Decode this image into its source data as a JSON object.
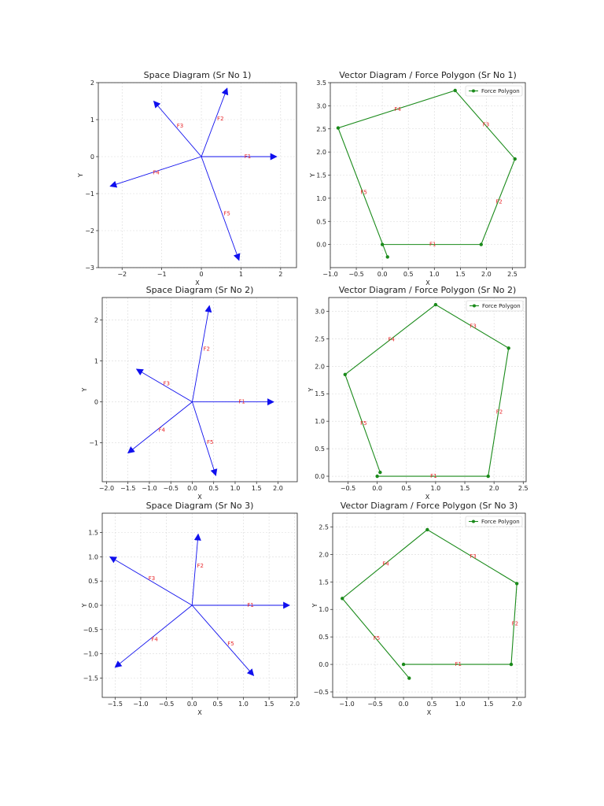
{
  "colors": {
    "space": "#1010ee",
    "polygon": "#1a8a1a",
    "label": "#e8262a",
    "grid": "#d9d9d9",
    "axis": "#222222"
  },
  "chart_data": [
    {
      "type": "quiver",
      "kind": "space",
      "title": "Space Diagram (Sr No 1)",
      "xlabel": "X",
      "ylabel": "Y",
      "xlim": [
        -2.6,
        2.4
      ],
      "ylim": [
        -3.0,
        2.0
      ],
      "xticks": [
        -2,
        -1,
        0,
        1,
        2
      ],
      "yticks": [
        -3,
        -2,
        -1,
        0,
        1,
        2
      ],
      "grid": true,
      "forces": [
        {
          "name": "F1",
          "dx": 1.9,
          "dy": 0.0
        },
        {
          "name": "F2",
          "dx": 0.65,
          "dy": 1.85
        },
        {
          "name": "F3",
          "dx": -1.2,
          "dy": 1.5
        },
        {
          "name": "F4",
          "dx": -2.3,
          "dy": -0.8
        },
        {
          "name": "F5",
          "dx": 0.95,
          "dy": -2.8
        }
      ]
    },
    {
      "type": "line",
      "kind": "polygon",
      "title": "Vector Diagram / Force Polygon (Sr No 1)",
      "xlabel": "X",
      "ylabel": "Y",
      "xlim": [
        -1.0,
        2.75
      ],
      "ylim": [
        -0.5,
        3.5
      ],
      "xticks": [
        -1.0,
        -0.5,
        0.0,
        0.5,
        1.0,
        1.5,
        2.0,
        2.5
      ],
      "yticks": [
        0.0,
        0.5,
        1.0,
        1.5,
        2.0,
        2.5,
        3.0,
        3.5
      ],
      "grid": true,
      "legend": "Force Polygon",
      "legend_position": "top-right",
      "points": [
        [
          0.0,
          0.0
        ],
        [
          1.9,
          0.0
        ],
        [
          2.55,
          1.85
        ],
        [
          1.4,
          3.33
        ],
        [
          -0.85,
          2.52
        ],
        [
          0.1,
          -0.27
        ]
      ],
      "segment_labels": [
        "F1",
        "F2",
        "F3",
        "F4",
        "F5"
      ]
    },
    {
      "type": "quiver",
      "kind": "space",
      "title": "Space Diagram (Sr No 2)",
      "xlabel": "X",
      "ylabel": "Y",
      "xlim": [
        -2.1,
        2.45
      ],
      "ylim": [
        -1.95,
        2.55
      ],
      "xticks": [
        -2.0,
        -1.5,
        -1.0,
        -0.5,
        0.0,
        0.5,
        1.0,
        1.5,
        2.0
      ],
      "yticks": [
        -1,
        0,
        1,
        2
      ],
      "grid": true,
      "forces": [
        {
          "name": "F1",
          "dx": 1.9,
          "dy": 0.0
        },
        {
          "name": "F2",
          "dx": 0.4,
          "dy": 2.35
        },
        {
          "name": "F3",
          "dx": -1.3,
          "dy": 0.8
        },
        {
          "name": "F4",
          "dx": -1.5,
          "dy": -1.25
        },
        {
          "name": "F5",
          "dx": 0.55,
          "dy": -1.8
        }
      ]
    },
    {
      "type": "line",
      "kind": "polygon",
      "title": "Vector Diagram / Force Polygon (Sr No 2)",
      "xlabel": "X",
      "ylabel": "Y",
      "xlim": [
        -0.83,
        2.55
      ],
      "ylim": [
        -0.1,
        3.25
      ],
      "xticks": [
        -0.5,
        0.0,
        0.5,
        1.0,
        1.5,
        2.0,
        2.5
      ],
      "yticks": [
        0.0,
        0.5,
        1.0,
        1.5,
        2.0,
        2.5,
        3.0
      ],
      "grid": true,
      "legend": "Force Polygon",
      "legend_position": "top-right",
      "points": [
        [
          0.0,
          0.0
        ],
        [
          1.9,
          0.0
        ],
        [
          2.25,
          2.33
        ],
        [
          1.0,
          3.12
        ],
        [
          -0.55,
          1.85
        ],
        [
          0.05,
          0.07
        ]
      ],
      "segment_labels": [
        "F1",
        "F2",
        "F3",
        "F4",
        "F5"
      ]
    },
    {
      "type": "quiver",
      "kind": "space",
      "title": "Space Diagram (Sr No 3)",
      "xlabel": "X",
      "ylabel": "Y",
      "xlim": [
        -1.75,
        2.05
      ],
      "ylim": [
        -1.9,
        1.9
      ],
      "xticks": [
        -1.5,
        -1.0,
        -0.5,
        0.0,
        0.5,
        1.0,
        1.5,
        2.0
      ],
      "yticks": [
        -1.5,
        -1.0,
        -0.5,
        0.0,
        0.5,
        1.0,
        1.5
      ],
      "grid": true,
      "forces": [
        {
          "name": "F1",
          "dx": 1.9,
          "dy": 0.0
        },
        {
          "name": "F2",
          "dx": 0.12,
          "dy": 1.47
        },
        {
          "name": "F3",
          "dx": -1.6,
          "dy": 1.0
        },
        {
          "name": "F4",
          "dx": -1.5,
          "dy": -1.28
        },
        {
          "name": "F5",
          "dx": 1.2,
          "dy": -1.45
        }
      ]
    },
    {
      "type": "line",
      "kind": "polygon",
      "title": "Vector Diagram / Force Polygon (Sr No 3)",
      "xlabel": "X",
      "ylabel": "Y",
      "xlim": [
        -1.25,
        2.15
      ],
      "ylim": [
        -0.6,
        2.75
      ],
      "xticks": [
        -1.0,
        -0.5,
        0.0,
        0.5,
        1.0,
        1.5,
        2.0
      ],
      "yticks": [
        -0.5,
        0.0,
        0.5,
        1.0,
        1.5,
        2.0,
        2.5
      ],
      "grid": true,
      "legend": "Force Polygon",
      "legend_position": "top-right",
      "points": [
        [
          0.0,
          0.0
        ],
        [
          1.9,
          0.0
        ],
        [
          2.0,
          1.47
        ],
        [
          0.42,
          2.45
        ],
        [
          -1.08,
          1.2
        ],
        [
          0.1,
          -0.25
        ]
      ],
      "segment_labels": [
        "F1",
        "F2",
        "F3",
        "F4",
        "F5"
      ]
    }
  ]
}
